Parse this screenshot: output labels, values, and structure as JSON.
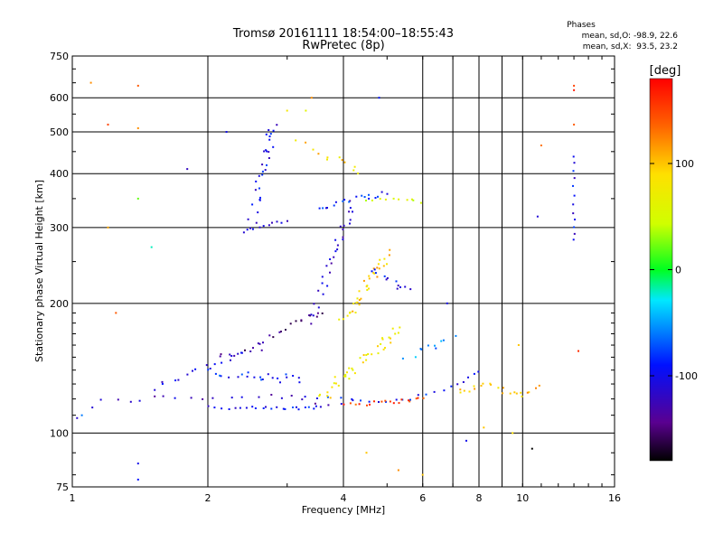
{
  "chart_data": {
    "type": "scatter",
    "title": "Tromsø 20161111 18:54:00–18:55:43",
    "subtitle": "RwPretec (8p)",
    "xlabel": "Frequency [MHz]",
    "ylabel": "Stationary phase Virtual Height [km]",
    "x_scale": "log",
    "y_scale": "log",
    "xlim": [
      1,
      16
    ],
    "ylim": [
      75,
      750
    ],
    "x_ticks": [
      1,
      2,
      4,
      6,
      8,
      10,
      16
    ],
    "x_tick_labels": [
      "1",
      "2",
      "4",
      "6",
      "8",
      "10",
      "16"
    ],
    "y_ticks": [
      75,
      100,
      200,
      300,
      400,
      500,
      600,
      750
    ],
    "y_tick_labels": [
      "75",
      "100",
      "200",
      "300",
      "400",
      "500",
      "600",
      "750"
    ],
    "grid": true,
    "colorbar": {
      "label": "[deg]",
      "range": [
        -180,
        180
      ],
      "ticks": [
        -100,
        0,
        100
      ],
      "tick_labels": [
        "-100",
        "0",
        "100"
      ]
    },
    "phases": {
      "heading": "Phases",
      "line1": "mean, sd,O: -98.9, 22.6",
      "line2": "mean, sd,X:  93.5, 23.2"
    },
    "trace_groups": [
      {
        "x": [
          1.02,
          1.15,
          1.3,
          1.45,
          1.6,
          1.8,
          2.0,
          2.3,
          2.6,
          2.9,
          3.2,
          3.5,
          3.8,
          4.2
        ],
        "y": [
          109,
          118,
          119,
          120,
          121,
          121,
          121,
          121,
          122,
          122,
          121,
          116,
          117,
          119
        ],
        "phase": -120,
        "spread": 0.03,
        "n": 24
      },
      {
        "x": [
          2.0,
          2.3,
          2.6,
          2.9,
          3.2,
          3.5
        ],
        "y": [
          115,
          114,
          114,
          114,
          114,
          115
        ],
        "phase": -95,
        "spread": 0.02,
        "n": 22
      },
      {
        "x": [
          3.3,
          3.8,
          4.3,
          4.8,
          5.3,
          5.8,
          6.4,
          7.0,
          7.5,
          8.0
        ],
        "y": [
          121,
          121,
          120,
          119,
          119,
          121,
          124,
          129,
          134,
          139
        ],
        "phase": -95,
        "spread": 0.02,
        "n": 22
      },
      {
        "x": [
          4.0,
          4.5,
          5.0,
          5.5,
          6.0
        ],
        "y": [
          117,
          117,
          118,
          119,
          120
        ],
        "phase": 150,
        "spread": 0.02,
        "n": 18
      },
      {
        "x": [
          7.2,
          7.8,
          8.5,
          9.2,
          10.0,
          10.8
        ],
        "y": [
          125,
          127,
          130,
          124,
          123,
          128
        ],
        "phase": 100,
        "spread": 0.03,
        "n": 22
      },
      {
        "x": [
          2.1,
          2.4,
          2.7,
          3.0,
          3.3,
          3.6
        ],
        "y": [
          150,
          155,
          165,
          175,
          185,
          192
        ],
        "phase": -140,
        "spread": 0.03,
        "n": 24
      },
      {
        "x": [
          1.5,
          1.7,
          1.9,
          2.1,
          2.3,
          2.6
        ],
        "y": [
          128,
          134,
          140,
          145,
          150,
          157
        ],
        "phase": -110,
        "spread": 0.04,
        "n": 18
      },
      {
        "x": [
          3.6,
          3.8,
          4.0,
          4.2,
          4.5,
          4.8,
          5.0,
          5.3
        ],
        "y": [
          120,
          127,
          135,
          142,
          150,
          158,
          165,
          175
        ],
        "phase": 80,
        "spread": 0.05,
        "n": 40
      },
      {
        "x": [
          3.4,
          3.6,
          3.8,
          4.0,
          4.2
        ],
        "y": [
          180,
          220,
          260,
          300,
          340
        ],
        "phase": -120,
        "spread": 0.04,
        "n": 30
      },
      {
        "x": [
          3.5,
          3.8,
          4.2,
          4.6,
          5.0
        ],
        "y": [
          330,
          340,
          350,
          355,
          360
        ],
        "phase": -90,
        "spread": 0.03,
        "n": 18
      },
      {
        "x": [
          4.5,
          5.0,
          5.5,
          5.9
        ],
        "y": [
          345,
          350,
          350,
          345
        ],
        "phase": 60,
        "spread": 0.02,
        "n": 10
      },
      {
        "x": [
          4.0,
          4.3,
          4.5,
          4.8,
          5.0
        ],
        "y": [
          180,
          200,
          220,
          240,
          260
        ],
        "phase": 95,
        "spread": 0.05,
        "n": 35
      },
      {
        "x": [
          4.6,
          5.0,
          5.3,
          5.6
        ],
        "y": [
          240,
          230,
          220,
          215
        ],
        "phase": -100,
        "spread": 0.04,
        "n": 12
      },
      {
        "x": [
          2.5,
          2.6,
          2.7,
          2.8
        ],
        "y": [
          300,
          380,
          450,
          520
        ],
        "phase": -100,
        "spread": 0.05,
        "n": 30
      },
      {
        "x": [
          2.4,
          2.6,
          2.8,
          3.0
        ],
        "y": [
          295,
          300,
          305,
          310
        ],
        "phase": -115,
        "spread": 0.02,
        "n": 10
      },
      {
        "x": [
          2.0,
          2.3,
          2.6,
          2.9,
          3.2
        ],
        "y": [
          138,
          136,
          135,
          134,
          133
        ],
        "phase": -85,
        "spread": 0.05,
        "n": 22
      },
      {
        "x": [
          5.5,
          6.0,
          6.5,
          7.0
        ],
        "y": [
          150,
          155,
          160,
          165
        ],
        "phase": -60,
        "spread": 0.05,
        "n": 10
      },
      {
        "x": [
          3.2,
          3.6,
          4.0,
          4.4
        ],
        "y": [
          480,
          440,
          420,
          400
        ],
        "phase": 90,
        "spread": 0.05,
        "n": 12
      },
      {
        "x": [
          13.0,
          13.0,
          13.0,
          13.0
        ],
        "y": [
          280,
          320,
          380,
          440
        ],
        "phase": -100,
        "spread": 0.01,
        "n": 12
      }
    ],
    "noise_points": [
      {
        "x": 1.1,
        "y": 650,
        "phase": 120
      },
      {
        "x": 1.2,
        "y": 520,
        "phase": 150
      },
      {
        "x": 1.2,
        "y": 300,
        "phase": 110
      },
      {
        "x": 1.4,
        "y": 640,
        "phase": 140
      },
      {
        "x": 1.4,
        "y": 510,
        "phase": 120
      },
      {
        "x": 1.4,
        "y": 350,
        "phase": 20
      },
      {
        "x": 1.5,
        "y": 270,
        "phase": -20
      },
      {
        "x": 1.8,
        "y": 410,
        "phase": -120
      },
      {
        "x": 1.4,
        "y": 85,
        "phase": -100
      },
      {
        "x": 1.4,
        "y": 78,
        "phase": -90
      },
      {
        "x": 3.4,
        "y": 600,
        "phase": 120
      },
      {
        "x": 3.3,
        "y": 560,
        "phase": 60
      },
      {
        "x": 4.8,
        "y": 600,
        "phase": -90
      },
      {
        "x": 4.5,
        "y": 90,
        "phase": 100
      },
      {
        "x": 5.3,
        "y": 82,
        "phase": 120
      },
      {
        "x": 6.0,
        "y": 80,
        "phase": 100
      },
      {
        "x": 7.5,
        "y": 96,
        "phase": -100
      },
      {
        "x": 8.2,
        "y": 103,
        "phase": 100
      },
      {
        "x": 9.5,
        "y": 100,
        "phase": 90
      },
      {
        "x": 10.5,
        "y": 92,
        "phase": -180
      },
      {
        "x": 11.0,
        "y": 465,
        "phase": 130
      },
      {
        "x": 13.0,
        "y": 640,
        "phase": 150
      },
      {
        "x": 13.0,
        "y": 625,
        "phase": 170
      },
      {
        "x": 13.0,
        "y": 520,
        "phase": 140
      },
      {
        "x": 10.8,
        "y": 318,
        "phase": -110
      },
      {
        "x": 13.3,
        "y": 155,
        "phase": 160
      },
      {
        "x": 1.05,
        "y": 110,
        "phase": -60
      },
      {
        "x": 1.25,
        "y": 190,
        "phase": 140
      },
      {
        "x": 2.2,
        "y": 500,
        "phase": -100
      },
      {
        "x": 3.0,
        "y": 560,
        "phase": 80
      },
      {
        "x": 6.8,
        "y": 200,
        "phase": -100
      },
      {
        "x": 9.8,
        "y": 160,
        "phase": 100
      }
    ],
    "point_count_note": ""
  }
}
